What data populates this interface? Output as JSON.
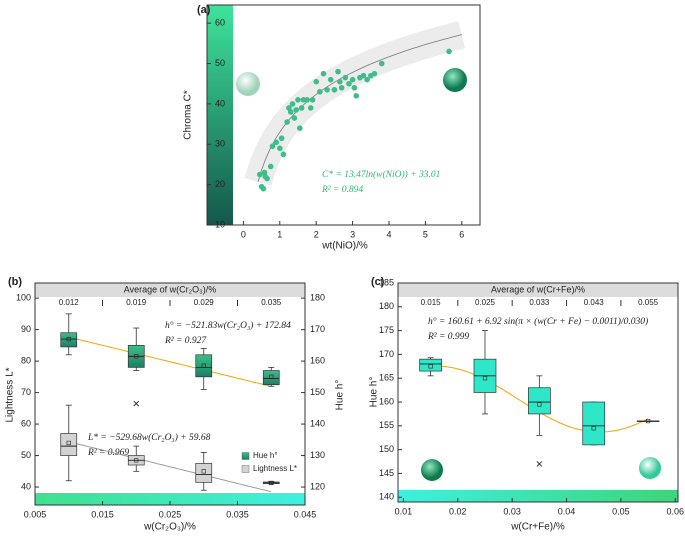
{
  "chart_data": [
    {
      "type": "scatter",
      "panel_label": "(a)",
      "xlabel": "wt(NiO)/%",
      "ylabel": "Chroma C*",
      "color": "#3dbd8a",
      "xlim": [
        -1,
        6.5
      ],
      "ylim": [
        10,
        64.5
      ],
      "xticks": [
        0,
        1,
        2,
        3,
        4,
        5,
        6
      ],
      "yticks": [
        10,
        20,
        30,
        40,
        50,
        60
      ],
      "x": [
        0.45,
        0.5,
        0.55,
        0.6,
        0.58,
        0.65,
        0.75,
        0.8,
        0.9,
        1.0,
        1.05,
        1.1,
        1.2,
        1.25,
        1.3,
        1.35,
        1.4,
        1.45,
        1.5,
        1.55,
        1.6,
        1.65,
        1.75,
        1.85,
        1.9,
        2.0,
        2.1,
        2.2,
        2.3,
        2.4,
        2.5,
        2.6,
        2.65,
        2.7,
        2.8,
        2.9,
        3.0,
        3.05,
        3.1,
        3.2,
        3.3,
        3.4,
        3.5,
        3.6,
        3.8,
        5.65
      ],
      "values": [
        22.5,
        19.5,
        19,
        22,
        23,
        21.5,
        24.5,
        29.5,
        30.5,
        29,
        31.5,
        27.5,
        35.5,
        39,
        38,
        40,
        36.5,
        38.5,
        41,
        34,
        39,
        41,
        41,
        39,
        41,
        45.5,
        43,
        47.5,
        43.5,
        46,
        43.5,
        48,
        45.5,
        44,
        46.5,
        45,
        46,
        44,
        42,
        46.5,
        47,
        46,
        47,
        47.5,
        50,
        53
      ],
      "fit": {
        "a": 13.47,
        "b": 33.01,
        "x_range": [
          0.4,
          6.0
        ]
      },
      "annotations": [
        "C* = 13.47ln(w(NiO)) + 33.01",
        "R² = 0.894"
      ]
    },
    {
      "type": "box",
      "panel_label": "(b)",
      "xlabel": "w(Cr₂O₃)/%",
      "ylabel": "Lightness L*",
      "y2label": "Hue h°",
      "top_title": "Average of w(Cr₂O₃)/%",
      "top_categories": [
        "0.012",
        "0.019",
        "0.029",
        "0.035"
      ],
      "xlim": [
        0.005,
        0.045
      ],
      "xticks": [
        0.005,
        0.015,
        0.025,
        0.035,
        0.045
      ],
      "ylim": [
        34.3,
        104.8
      ],
      "yticks": [
        40,
        50,
        60,
        70,
        80,
        90,
        100
      ],
      "y2lim": [
        114.3,
        184.8
      ],
      "y2ticks": [
        120,
        130,
        140,
        150,
        160,
        170,
        180
      ],
      "series": [
        {
          "name": "Hue h°",
          "color": "#2aa87a",
          "line_color": "#f0a500",
          "axis": "y2",
          "fit": {
            "slope": -521.83,
            "intercept": 172.84
          },
          "boxes": [
            {
              "x": 0.01,
              "min": 162,
              "q1": 164.5,
              "median": 167,
              "q3": 169,
              "max": 175,
              "mean": 167
            },
            {
              "x": 0.02,
              "min": 157,
              "q1": 158,
              "median": 161.5,
              "q3": 165,
              "max": 170.5,
              "mean": 161.5,
              "outliers": [
                146.5
              ]
            },
            {
              "x": 0.03,
              "min": 151,
              "q1": 155,
              "median": 158,
              "q3": 162,
              "max": 164,
              "mean": 158.5
            },
            {
              "x": 0.04,
              "min": 152,
              "q1": 152.5,
              "median": 154.5,
              "q3": 157,
              "max": 158,
              "mean": 155
            }
          ]
        },
        {
          "name": "Lightness L*",
          "color": "#d3d3d3",
          "line_color": "#9a9a9a",
          "axis": "y",
          "fit": {
            "slope": -529.68,
            "intercept": 59.68
          },
          "boxes": [
            {
              "x": 0.01,
              "min": 42,
              "q1": 50,
              "median": 53,
              "q3": 57,
              "max": 66,
              "mean": 54
            },
            {
              "x": 0.02,
              "min": 45,
              "q1": 47,
              "median": 48.5,
              "q3": 50,
              "max": 53,
              "mean": 48.5
            },
            {
              "x": 0.03,
              "min": 39,
              "q1": 41.5,
              "median": 44,
              "q3": 47.5,
              "max": 51,
              "mean": 45
            },
            {
              "x": 0.04,
              "min": 41,
              "q1": 41.1,
              "median": 41.3,
              "q3": 41.6,
              "max": 41.8,
              "mean": 41.3
            }
          ]
        }
      ],
      "annotations": [
        "h° = −521.83w(Cr₂O₃) + 172.84",
        "R² = 0.927",
        "L* = −529.68w(Cr₂O₃) + 59.68",
        "R² = 0.969"
      ]
    },
    {
      "type": "box",
      "panel_label": "(c)",
      "xlabel": "w(Cr+Fe)/%",
      "ylabel": "Hue h°",
      "top_title": "Average of w(Cr+Fe)/%",
      "top_categories": [
        "0.015",
        "0.025",
        "0.033",
        "0.043",
        "0.055"
      ],
      "xlim": [
        0.009,
        0.0605
      ],
      "xticks": [
        0.01,
        0.02,
        0.03,
        0.04,
        0.05,
        0.06
      ],
      "ylim": [
        139,
        185
      ],
      "yticks": [
        140,
        145,
        150,
        155,
        160,
        165,
        170,
        175,
        180,
        185
      ],
      "series": [
        {
          "name": "Hue h°",
          "color": "#2ee6c8",
          "line_color": "#f0a500",
          "axis": "y",
          "fit": {
            "a": 160.61,
            "b": 6.92,
            "c": 0.0011,
            "d": 0.03
          },
          "boxes": [
            {
              "x": 0.015,
              "min": 165.5,
              "q1": 166.5,
              "median": 168,
              "q3": 169,
              "max": 169.3,
              "mean": 167.5
            },
            {
              "x": 0.025,
              "min": 157.5,
              "q1": 162,
              "median": 165.5,
              "q3": 169,
              "max": 175,
              "mean": 165
            },
            {
              "x": 0.035,
              "min": 153,
              "q1": 157.5,
              "median": 160,
              "q3": 163,
              "max": 165.5,
              "mean": 159.5,
              "outliers": [
                147
              ]
            },
            {
              "x": 0.045,
              "min": 151,
              "q1": 151,
              "median": 155,
              "q3": 160,
              "max": 160,
              "mean": 154.5
            },
            {
              "x": 0.055,
              "min": 156,
              "q1": 156,
              "median": 156,
              "q3": 156,
              "max": 156,
              "mean": 156
            }
          ]
        }
      ],
      "annotations": [
        "h° = 160.61 + 6.92 sin(π × (w(Cr + Fe) − 0.0011)/0.030)",
        "R² = 0.999"
      ]
    }
  ]
}
